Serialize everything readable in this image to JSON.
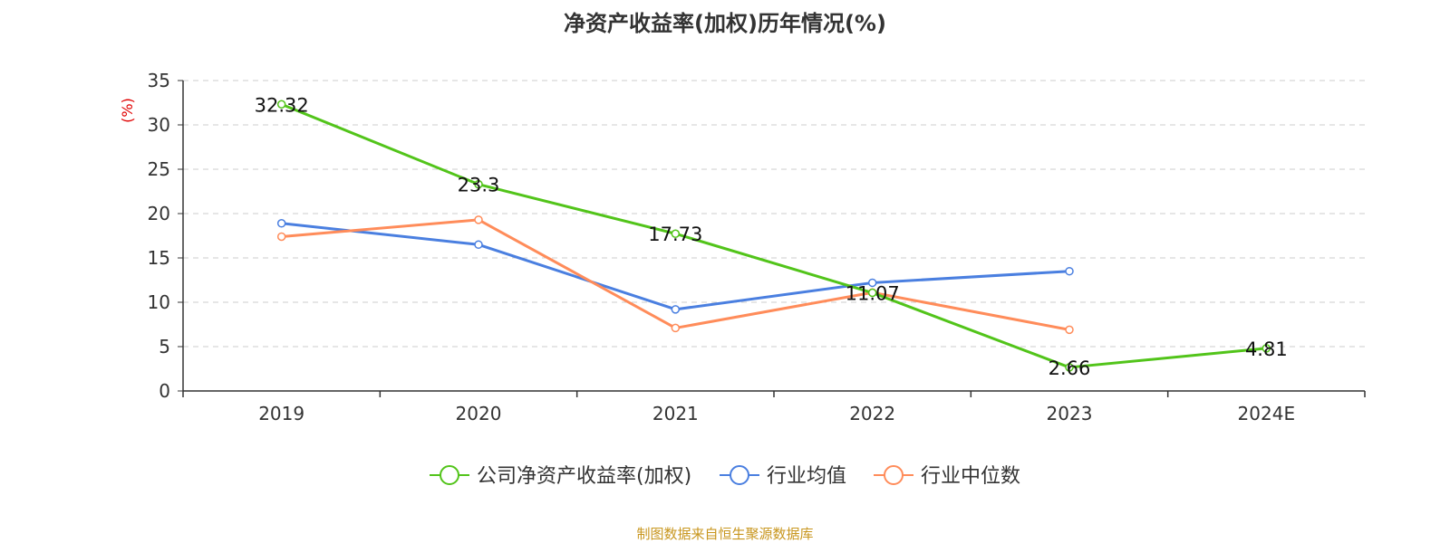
{
  "chart_data": {
    "type": "line",
    "title": "净资产收益率(加权)历年情况(%)",
    "ylabel": "(%)",
    "ylim": [
      0,
      35
    ],
    "yticks": [
      0,
      5,
      10,
      15,
      20,
      25,
      30,
      35
    ],
    "grid": true,
    "legend_position": "bottom-center",
    "categories": [
      "2019",
      "2020",
      "2021",
      "2022",
      "2023",
      "2024E"
    ],
    "series": [
      {
        "name": "公司净资产收益率(加权)",
        "color": "#52c41a",
        "values": [
          32.32,
          23.3,
          17.73,
          11.07,
          2.66,
          4.81
        ],
        "data_labels": [
          "32.32",
          "23.3",
          "17.73",
          "11.07",
          "2.66",
          "4.81"
        ]
      },
      {
        "name": "行业均值",
        "color": "#4a7fe0",
        "values": [
          18.9,
          16.5,
          9.2,
          12.2,
          13.5,
          null
        ]
      },
      {
        "name": "行业中位数",
        "color": "#ff8c5a",
        "values": [
          17.4,
          19.3,
          7.1,
          11.1,
          6.9,
          null
        ]
      }
    ]
  },
  "footer": {
    "source_text": "制图数据来自恒生聚源数据库",
    "source_color": "#c8961e"
  },
  "colors": {
    "axis": "#333333",
    "grid": "#cccccc",
    "ylabel": "#e00000"
  }
}
